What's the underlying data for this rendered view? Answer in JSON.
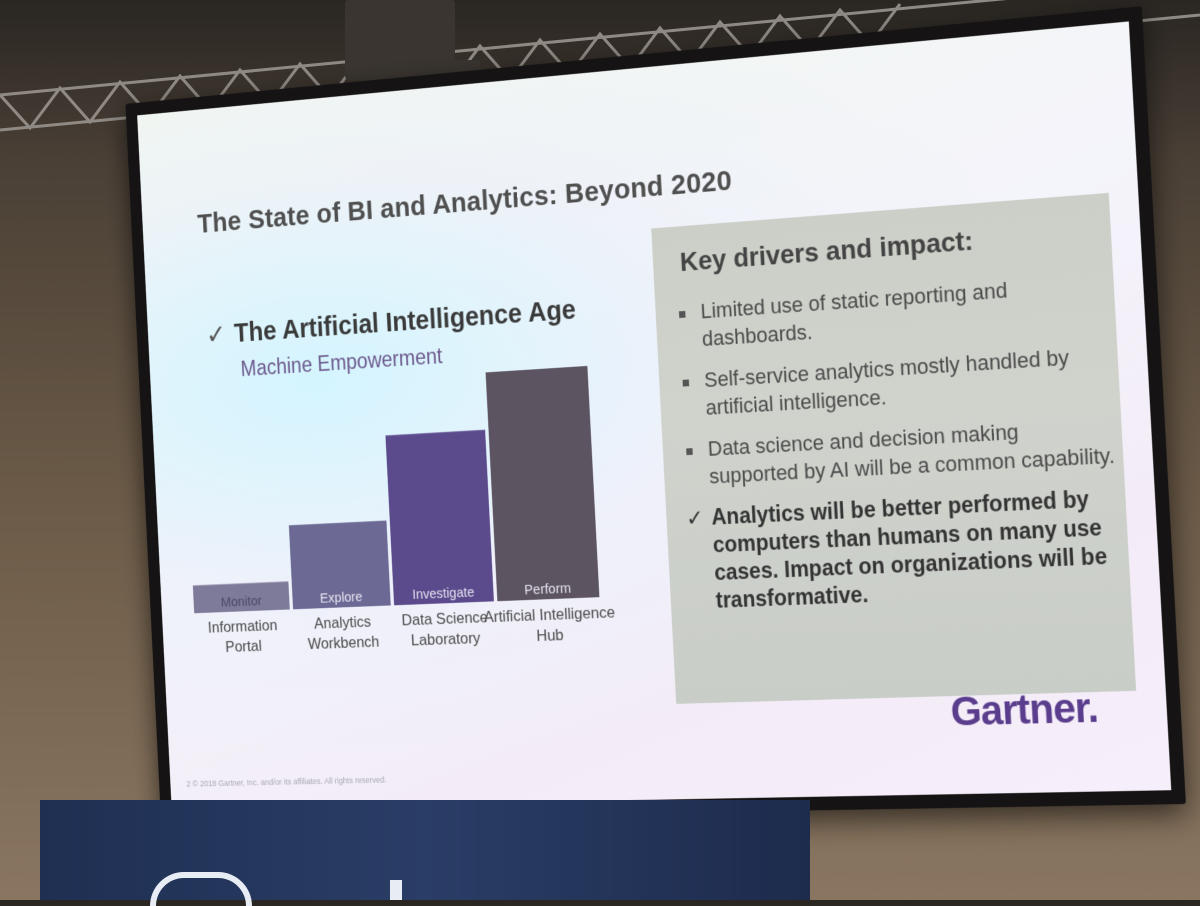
{
  "slide": {
    "title": "The State of BI and Analytics: Beyond 2020",
    "left_heading_check": "✓",
    "left_heading": "The Artificial Intelligence Age",
    "left_subheading": "Machine Empowerment",
    "panel_heading": "Key drivers and impact:",
    "bullets": [
      "Limited use of static reporting and dashboards.",
      "Self-service analytics mostly handled by artificial intelligence.",
      "Data science and decision making supported by AI will be a common capability."
    ],
    "conclusion_check": "✓",
    "conclusion": "Analytics will be better performed by computers than humans on many use cases. Impact on organizations will be transformative.",
    "logo": "Gartner",
    "logo_dot": ".",
    "footnote": "2 © 2018 Gartner, Inc. and/or its affiliates. All rights reserved."
  },
  "chart_data": {
    "type": "bar",
    "title": "",
    "xlabel": "",
    "ylabel": "",
    "categories": [
      "Information Portal",
      "Analytics Workbench",
      "Data Science Laboratory",
      "Artificial Intelligence Hub"
    ],
    "bar_labels": [
      "Monitor",
      "Explore",
      "Investigate",
      "Perform"
    ],
    "values": [
      1,
      3,
      6,
      8
    ],
    "ylim": [
      0,
      8
    ],
    "grid": false,
    "colors": [
      "#7e7a99",
      "#6c6a94",
      "#5b4a8c",
      "#5c5460"
    ]
  }
}
